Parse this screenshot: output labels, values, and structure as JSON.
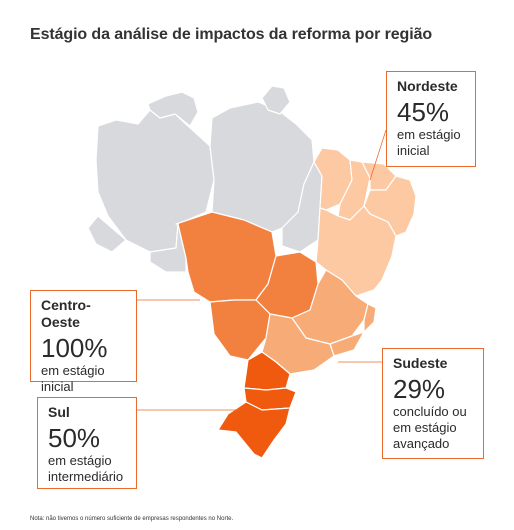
{
  "title": "Estágio da análise de impactos da reforma por região",
  "regions": {
    "norte": {
      "color": "#d7d9dc"
    },
    "nordeste": {
      "name": "Nordeste",
      "percent": "45%",
      "status": [
        "em estágio",
        "inicial"
      ],
      "color": "#fcc9a3"
    },
    "centro_oeste": {
      "name": "Centro-Oeste",
      "percent": "100%",
      "status": [
        "em estágio",
        "inicial"
      ],
      "color": "#f2803f"
    },
    "sudeste": {
      "name": "Sudeste",
      "percent": "29%",
      "status": [
        "concluído ou",
        "em estágio",
        "avançado"
      ],
      "color": "#f7ac78"
    },
    "sul": {
      "name": "Sul",
      "percent": "50%",
      "status": [
        "em estágio",
        "intermediário"
      ],
      "color": "#f05a0f"
    }
  },
  "accent_color": "#ea6a2b",
  "note": "Nota: não tivemos o número suficiente de empresas respondentes no Norte."
}
